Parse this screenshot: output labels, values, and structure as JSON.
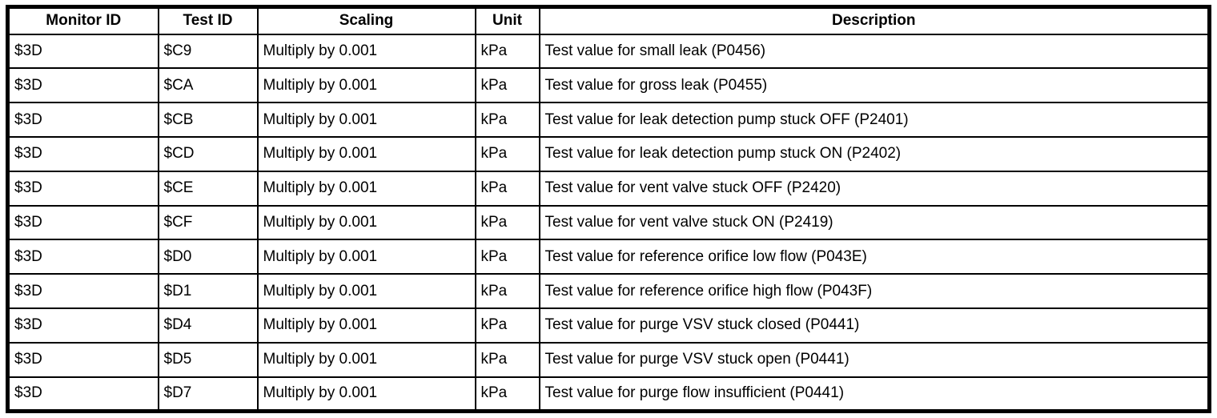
{
  "table": {
    "headers": [
      "Monitor ID",
      "Test ID",
      "Scaling",
      "Unit",
      "Description"
    ],
    "rows": [
      {
        "monitor_id": "$3D",
        "test_id": "$C9",
        "scaling": "Multiply by 0.001",
        "unit": "kPa",
        "description": "Test value for small leak (P0456)"
      },
      {
        "monitor_id": "$3D",
        "test_id": "$CA",
        "scaling": "Multiply by 0.001",
        "unit": "kPa",
        "description": "Test value for gross leak (P0455)"
      },
      {
        "monitor_id": "$3D",
        "test_id": "$CB",
        "scaling": "Multiply by 0.001",
        "unit": "kPa",
        "description": "Test value for leak detection pump stuck OFF (P2401)"
      },
      {
        "monitor_id": "$3D",
        "test_id": "$CD",
        "scaling": "Multiply by 0.001",
        "unit": "kPa",
        "description": "Test value for leak detection pump stuck ON (P2402)"
      },
      {
        "monitor_id": "$3D",
        "test_id": "$CE",
        "scaling": "Multiply by 0.001",
        "unit": "kPa",
        "description": "Test value for vent valve stuck OFF (P2420)"
      },
      {
        "monitor_id": "$3D",
        "test_id": "$CF",
        "scaling": "Multiply by 0.001",
        "unit": "kPa",
        "description": "Test value for vent valve stuck ON (P2419)"
      },
      {
        "monitor_id": "$3D",
        "test_id": "$D0",
        "scaling": "Multiply by 0.001",
        "unit": "kPa",
        "description": "Test value for reference orifice low flow (P043E)"
      },
      {
        "monitor_id": "$3D",
        "test_id": "$D1",
        "scaling": "Multiply by 0.001",
        "unit": "kPa",
        "description": "Test value for reference orifice high flow (P043F)"
      },
      {
        "monitor_id": "$3D",
        "test_id": "$D4",
        "scaling": "Multiply by 0.001",
        "unit": "kPa",
        "description": "Test value for purge VSV stuck closed (P0441)"
      },
      {
        "monitor_id": "$3D",
        "test_id": "$D5",
        "scaling": "Multiply by 0.001",
        "unit": "kPa",
        "description": "Test value for purge VSV stuck open (P0441)"
      },
      {
        "monitor_id": "$3D",
        "test_id": "$D7",
        "scaling": "Multiply by 0.001",
        "unit": "kPa",
        "description": "Test value for purge flow insufficient (P0441)"
      }
    ]
  }
}
